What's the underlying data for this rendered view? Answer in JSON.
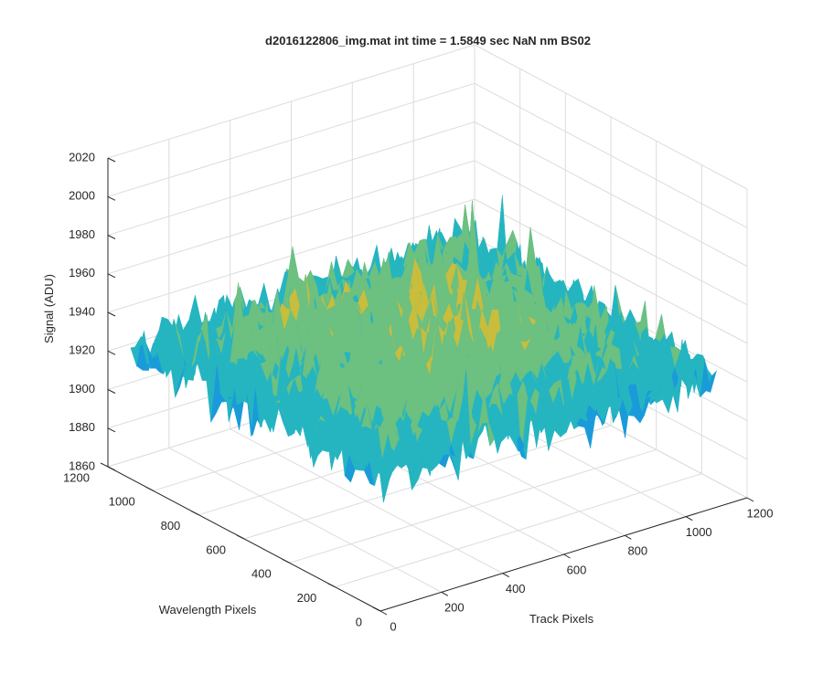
{
  "chart_data": {
    "type": "surface",
    "title": "d2016122806_img.mat int time = 1.5849 sec  NaN nm BS02",
    "xlabel": "Track Pixels",
    "ylabel": "Wavelength Pixels",
    "zlabel": "Signal (ADU)",
    "xlim": [
      0,
      1200
    ],
    "ylim": [
      0,
      1200
    ],
    "zlim": [
      1860,
      2020
    ],
    "x_ticks": [
      "0",
      "200",
      "400",
      "600",
      "800",
      "1000",
      "1200"
    ],
    "y_ticks": [
      "0",
      "200",
      "400",
      "600",
      "800",
      "1000",
      "1200"
    ],
    "z_ticks": [
      "1860",
      "1880",
      "1900",
      "1920",
      "1940",
      "1960",
      "1980",
      "2000",
      "2020"
    ],
    "x_extent": [
      0,
      1100
    ],
    "y_extent": [
      0,
      1100
    ],
    "z_center": 1930,
    "z_corner_low": 1906,
    "z_noise_amplitude": 22,
    "grid": true,
    "colormap": "parula",
    "colors": [
      "#0072bd",
      "#1a9bd9",
      "#25b5c0",
      "#6cc080",
      "#c8bd3c",
      "#f0c22c"
    ]
  }
}
